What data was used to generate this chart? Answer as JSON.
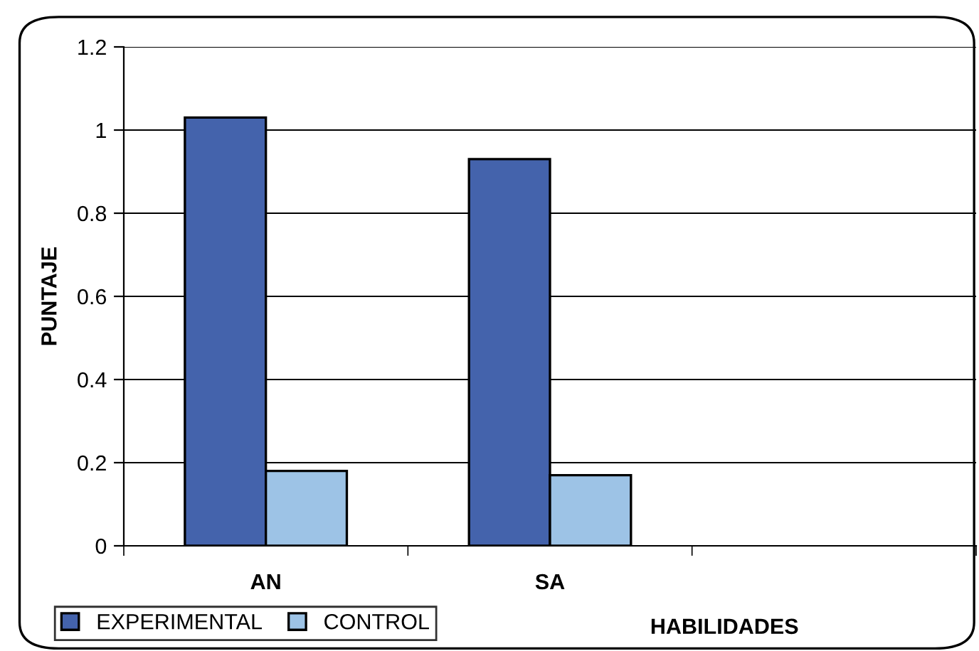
{
  "chart_data": {
    "type": "bar",
    "xlabel": "HABILIDADES",
    "ylabel": "PUNTAJE",
    "categories": [
      "AN",
      "SA",
      null
    ],
    "series": [
      {
        "name": "EXPERIMENTAL",
        "color": "#4463ac",
        "values": [
          1.03,
          0.93,
          null
        ]
      },
      {
        "name": "CONTROL",
        "color": "#9dc3e6",
        "values": [
          0.18,
          0.17,
          null
        ]
      }
    ],
    "ylim": [
      0,
      1.2
    ],
    "yticks": [
      0,
      0.2,
      0.4,
      0.6,
      0.8,
      1,
      1.2
    ],
    "grid": "y",
    "legend": "bottom left"
  }
}
